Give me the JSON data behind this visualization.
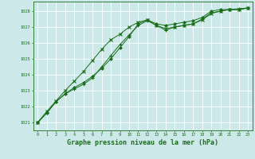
{
  "bg_color": "#cce8e8",
  "grid_color": "#ffffff",
  "line_color": "#1a6e1a",
  "marker_color": "#1a6e1a",
  "xlabel": "Graphe pression niveau de la mer (hPa)",
  "xlabel_fontsize": 6.0,
  "ylabel_vals": [
    1021,
    1022,
    1023,
    1024,
    1025,
    1026,
    1027,
    1028
  ],
  "xlim": [
    -0.5,
    23.5
  ],
  "ylim": [
    1020.5,
    1028.6
  ],
  "xticks": [
    0,
    1,
    2,
    3,
    4,
    5,
    6,
    7,
    8,
    9,
    10,
    11,
    12,
    13,
    14,
    15,
    16,
    17,
    18,
    19,
    20,
    21,
    22,
    23
  ],
  "line1": [
    1021.0,
    1021.6,
    1022.3,
    1022.8,
    1023.1,
    1023.4,
    1023.8,
    1024.5,
    1025.2,
    1025.9,
    1026.5,
    1027.1,
    1027.4,
    1027.1,
    1026.8,
    1027.0,
    1027.1,
    1027.2,
    1027.5,
    1027.9,
    1028.0,
    1028.1,
    1028.15,
    1028.2
  ],
  "line2": [
    1021.0,
    1021.6,
    1022.3,
    1022.8,
    1023.2,
    1023.5,
    1023.9,
    1024.4,
    1025.0,
    1025.7,
    1026.4,
    1027.2,
    1027.45,
    1027.2,
    1027.1,
    1027.2,
    1027.3,
    1027.4,
    1027.6,
    1028.0,
    1028.1,
    1028.1,
    1028.1,
    1028.2
  ],
  "line3": [
    1021.0,
    1021.7,
    1022.35,
    1023.0,
    1023.6,
    1024.2,
    1024.9,
    1025.6,
    1026.2,
    1026.55,
    1027.0,
    1027.3,
    1027.45,
    1027.1,
    1026.9,
    1027.0,
    1027.1,
    1027.2,
    1027.45,
    1027.85,
    1028.0,
    1028.1,
    1028.1,
    1028.2
  ]
}
